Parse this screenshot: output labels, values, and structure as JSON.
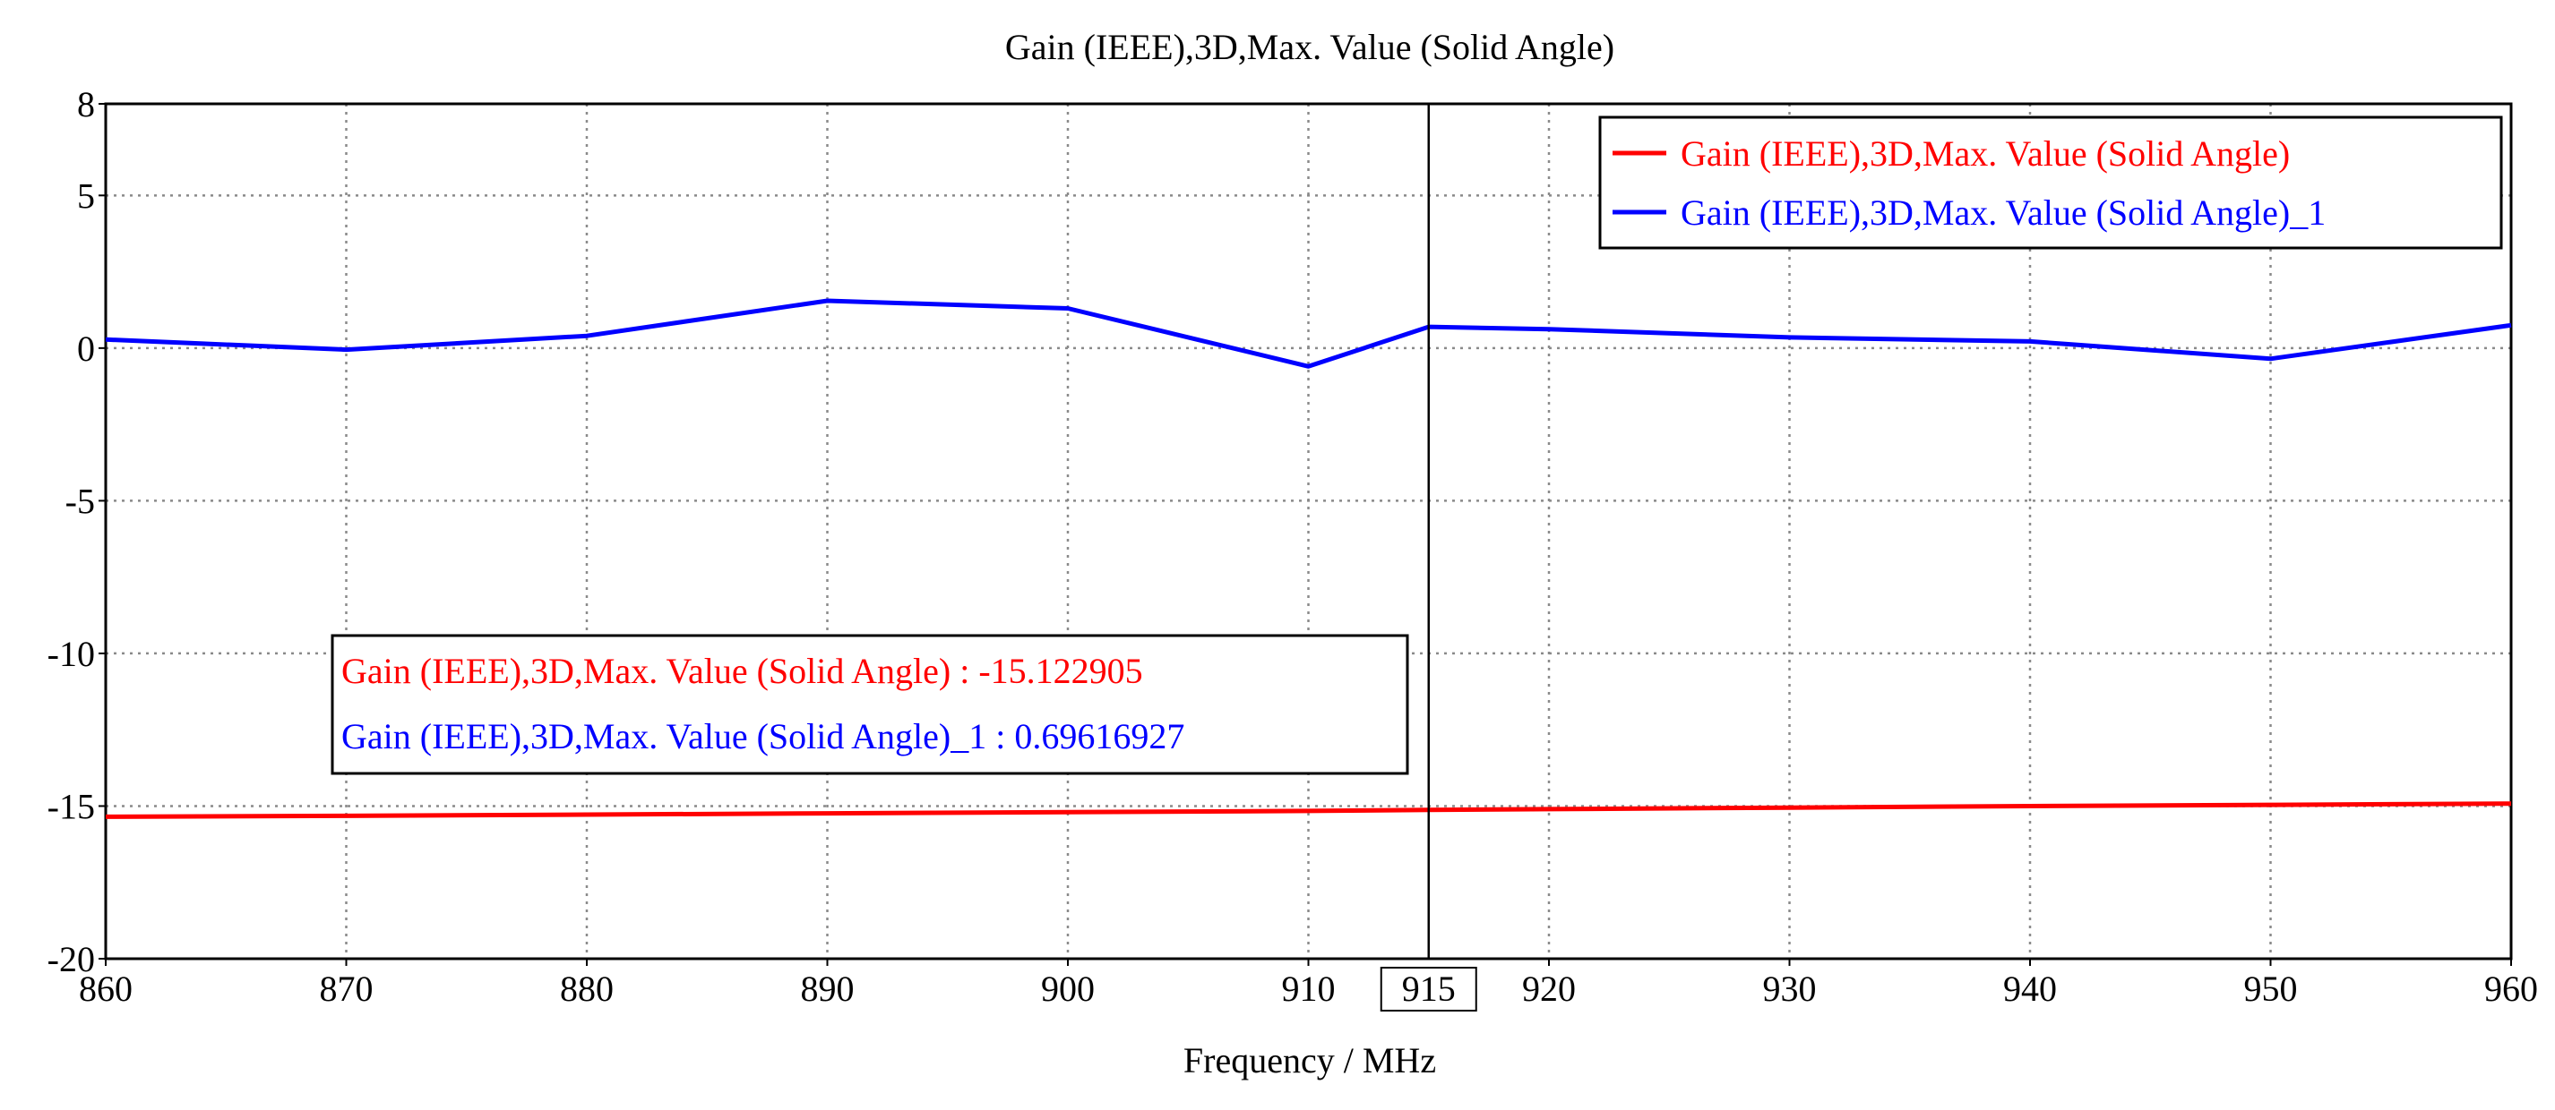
{
  "chart_data": {
    "type": "line",
    "title": "Gain (IEEE),3D,Max. Value (Solid Angle)",
    "xlabel": "Frequency / MHz",
    "ylabel": "",
    "xlim": [
      860,
      960
    ],
    "ylim": [
      -20,
      8
    ],
    "x_ticks": [
      {
        "value": 860,
        "label": "860"
      },
      {
        "value": 870,
        "label": "870"
      },
      {
        "value": 880,
        "label": "880"
      },
      {
        "value": 890,
        "label": "890"
      },
      {
        "value": 900,
        "label": "900"
      },
      {
        "value": 910,
        "label": "910"
      },
      {
        "value": 920,
        "label": "920"
      },
      {
        "value": 930,
        "label": "930"
      },
      {
        "value": 940,
        "label": "940"
      },
      {
        "value": 950,
        "label": "950"
      },
      {
        "value": 960,
        "label": "960"
      }
    ],
    "y_ticks": [
      {
        "value": 8,
        "label": "8"
      },
      {
        "value": 5,
        "label": "5"
      },
      {
        "value": 0,
        "label": "0"
      },
      {
        "value": -5,
        "label": "-5"
      },
      {
        "value": -10,
        "label": "-10"
      },
      {
        "value": -15,
        "label": "-15"
      },
      {
        "value": -20,
        "label": "-20"
      }
    ],
    "grid": true,
    "legend_position": "top-right",
    "series": [
      {
        "name": "Gain (IEEE),3D,Max. Value (Solid Angle)",
        "color": "#ff0000",
        "x": [
          860,
          870,
          880,
          890,
          900,
          910,
          915,
          920,
          930,
          940,
          950,
          960
        ],
        "values": [
          -15.35,
          -15.32,
          -15.28,
          -15.24,
          -15.2,
          -15.16,
          -15.122905,
          -15.1,
          -15.05,
          -15.0,
          -14.96,
          -14.92
        ]
      },
      {
        "name": "Gain (IEEE),3D,Max. Value (Solid Angle)_1",
        "color": "#0000ff",
        "x": [
          860,
          870,
          880,
          890,
          900,
          910,
          915,
          920,
          930,
          940,
          950,
          960
        ],
        "values": [
          0.28,
          -0.05,
          0.4,
          1.55,
          1.3,
          -0.6,
          0.69616927,
          0.62,
          0.35,
          0.22,
          -0.35,
          0.75
        ]
      }
    ],
    "marker": {
      "x": 915,
      "label": "915",
      "readout": [
        {
          "text": "Gain (IEEE),3D,Max. Value (Solid Angle) : -15.122905",
          "color": "#ff0000"
        },
        {
          "text": "Gain (IEEE),3D,Max. Value (Solid Angle)_1 : 0.69616927",
          "color": "#0000ff"
        }
      ]
    }
  }
}
